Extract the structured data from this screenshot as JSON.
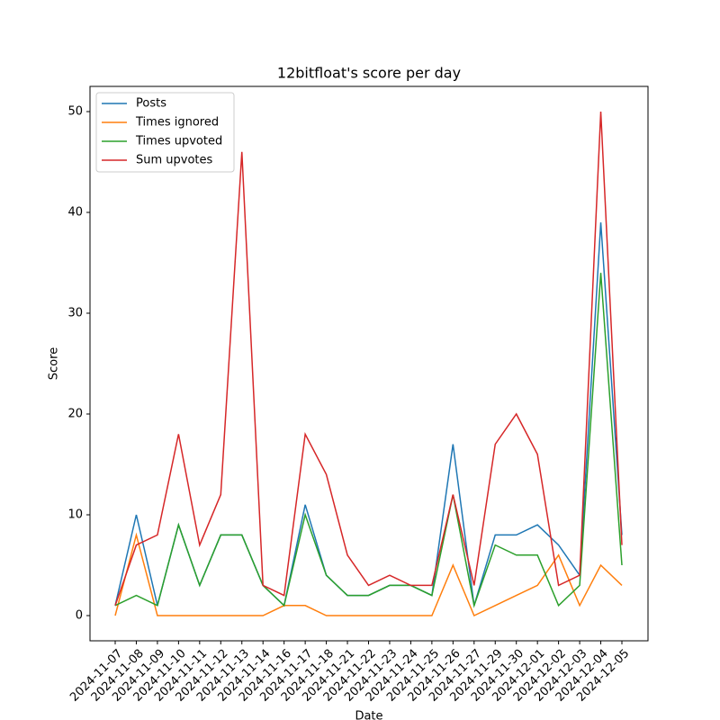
{
  "chart_data": {
    "type": "line",
    "title": "12bitfloat's score per day",
    "xlabel": "Date",
    "ylabel": "Score",
    "categories": [
      "2024-11-07",
      "2024-11-08",
      "2024-11-09",
      "2024-11-10",
      "2024-11-11",
      "2024-11-12",
      "2024-11-13",
      "2024-11-14",
      "2024-11-16",
      "2024-11-17",
      "2024-11-18",
      "2024-11-21",
      "2024-11-22",
      "2024-11-23",
      "2024-11-24",
      "2024-11-25",
      "2024-11-26",
      "2024-11-27",
      "2024-11-29",
      "2024-11-30",
      "2024-12-01",
      "2024-12-02",
      "2024-12-03",
      "2024-12-04",
      "2024-12-05"
    ],
    "series": [
      {
        "name": "Posts",
        "color": "#1f77b4",
        "values": [
          1,
          10,
          1,
          9,
          3,
          8,
          8,
          3,
          1,
          11,
          4,
          2,
          2,
          3,
          3,
          2,
          17,
          1,
          8,
          8,
          9,
          7,
          4,
          39,
          8
        ]
      },
      {
        "name": "Times ignored",
        "color": "#ff7f0e",
        "values": [
          0,
          8,
          0,
          0,
          0,
          0,
          0,
          0,
          1,
          1,
          0,
          0,
          0,
          0,
          0,
          0,
          5,
          0,
          1,
          2,
          3,
          6,
          1,
          5,
          3
        ]
      },
      {
        "name": "Times upvoted",
        "color": "#2ca02c",
        "values": [
          1,
          2,
          1,
          9,
          3,
          8,
          8,
          3,
          1,
          10,
          4,
          2,
          2,
          3,
          3,
          2,
          12,
          1,
          7,
          6,
          6,
          1,
          3,
          34,
          5
        ]
      },
      {
        "name": "Sum upvotes",
        "color": "#d62728",
        "values": [
          1,
          7,
          8,
          18,
          7,
          12,
          46,
          3,
          2,
          18,
          14,
          6,
          3,
          4,
          3,
          3,
          12,
          3,
          17,
          20,
          16,
          3,
          4,
          50,
          7
        ]
      }
    ],
    "ylim": [
      -2.5,
      52.5
    ],
    "yticks": [
      0,
      10,
      20,
      30,
      40,
      50
    ],
    "legend": "upper left"
  }
}
